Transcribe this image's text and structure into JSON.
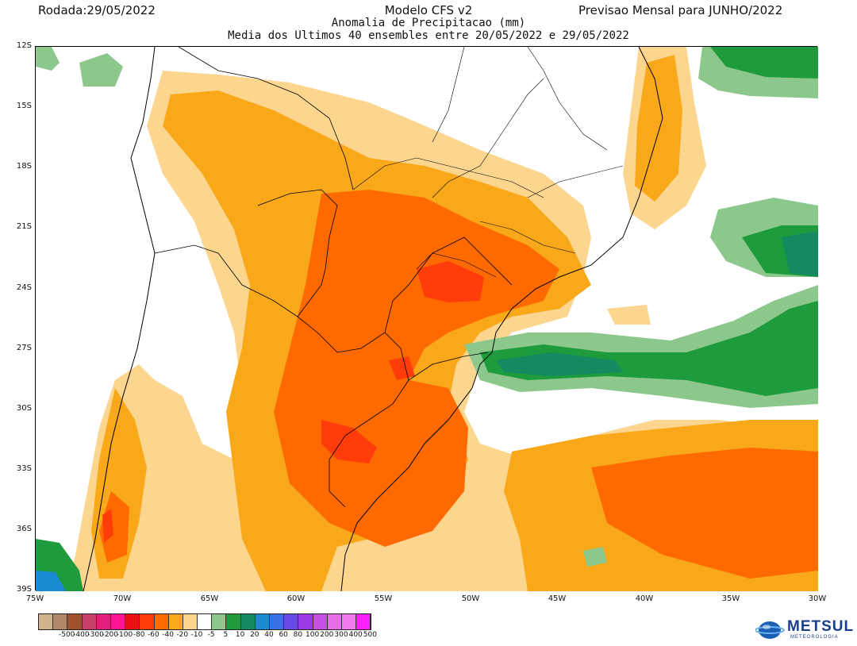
{
  "header": {
    "run_date": "Rodada:29/05/2022",
    "model": "Modelo CFS v2",
    "forecast": "Previsao Mensal para JUNHO/2022",
    "variable": "Anomalia de Precipitacao (mm)",
    "ensemble_note": "Media dos Ultimos 40 ensembles entre 20/05/2022 e 29/05/2022"
  },
  "map": {
    "lat_ticks": [
      "12S",
      "15S",
      "18S",
      "21S",
      "24S",
      "27S",
      "30S",
      "33S",
      "36S",
      "39S"
    ],
    "lon_ticks": [
      "75W",
      "70W",
      "65W",
      "60W",
      "55W",
      "50W",
      "45W",
      "40W",
      "35W",
      "30W"
    ],
    "extent": {
      "lon_min": -75,
      "lon_max": -30,
      "lat_min": -39,
      "lat_max": -12
    }
  },
  "legend": {
    "labels": [
      "-500",
      "-400",
      "-300",
      "-200",
      "-100",
      "-80",
      "-60",
      "-40",
      "-20",
      "-10",
      "-5",
      "5",
      "10",
      "20",
      "40",
      "60",
      "80",
      "100",
      "200",
      "300",
      "400",
      "500"
    ],
    "colors": [
      "#d2b48c",
      "#b08a68",
      "#a0522d",
      "#c8406a",
      "#e0207a",
      "#ff1493",
      "#ee1010",
      "#ff3c0a",
      "#ff6a00",
      "#f8a818",
      "#fcd58e",
      "#ffffff",
      "#8cc88c",
      "#1e9b3c",
      "#148a60",
      "#1a8ad2",
      "#3c6ee6",
      "#6a4ae6",
      "#9a3ae6",
      "#c850e6",
      "#e66ee6",
      "#f07af0",
      "#ff20ff"
    ]
  },
  "logo": {
    "name": "METSUL",
    "tagline": "METEOROLOGIA"
  }
}
